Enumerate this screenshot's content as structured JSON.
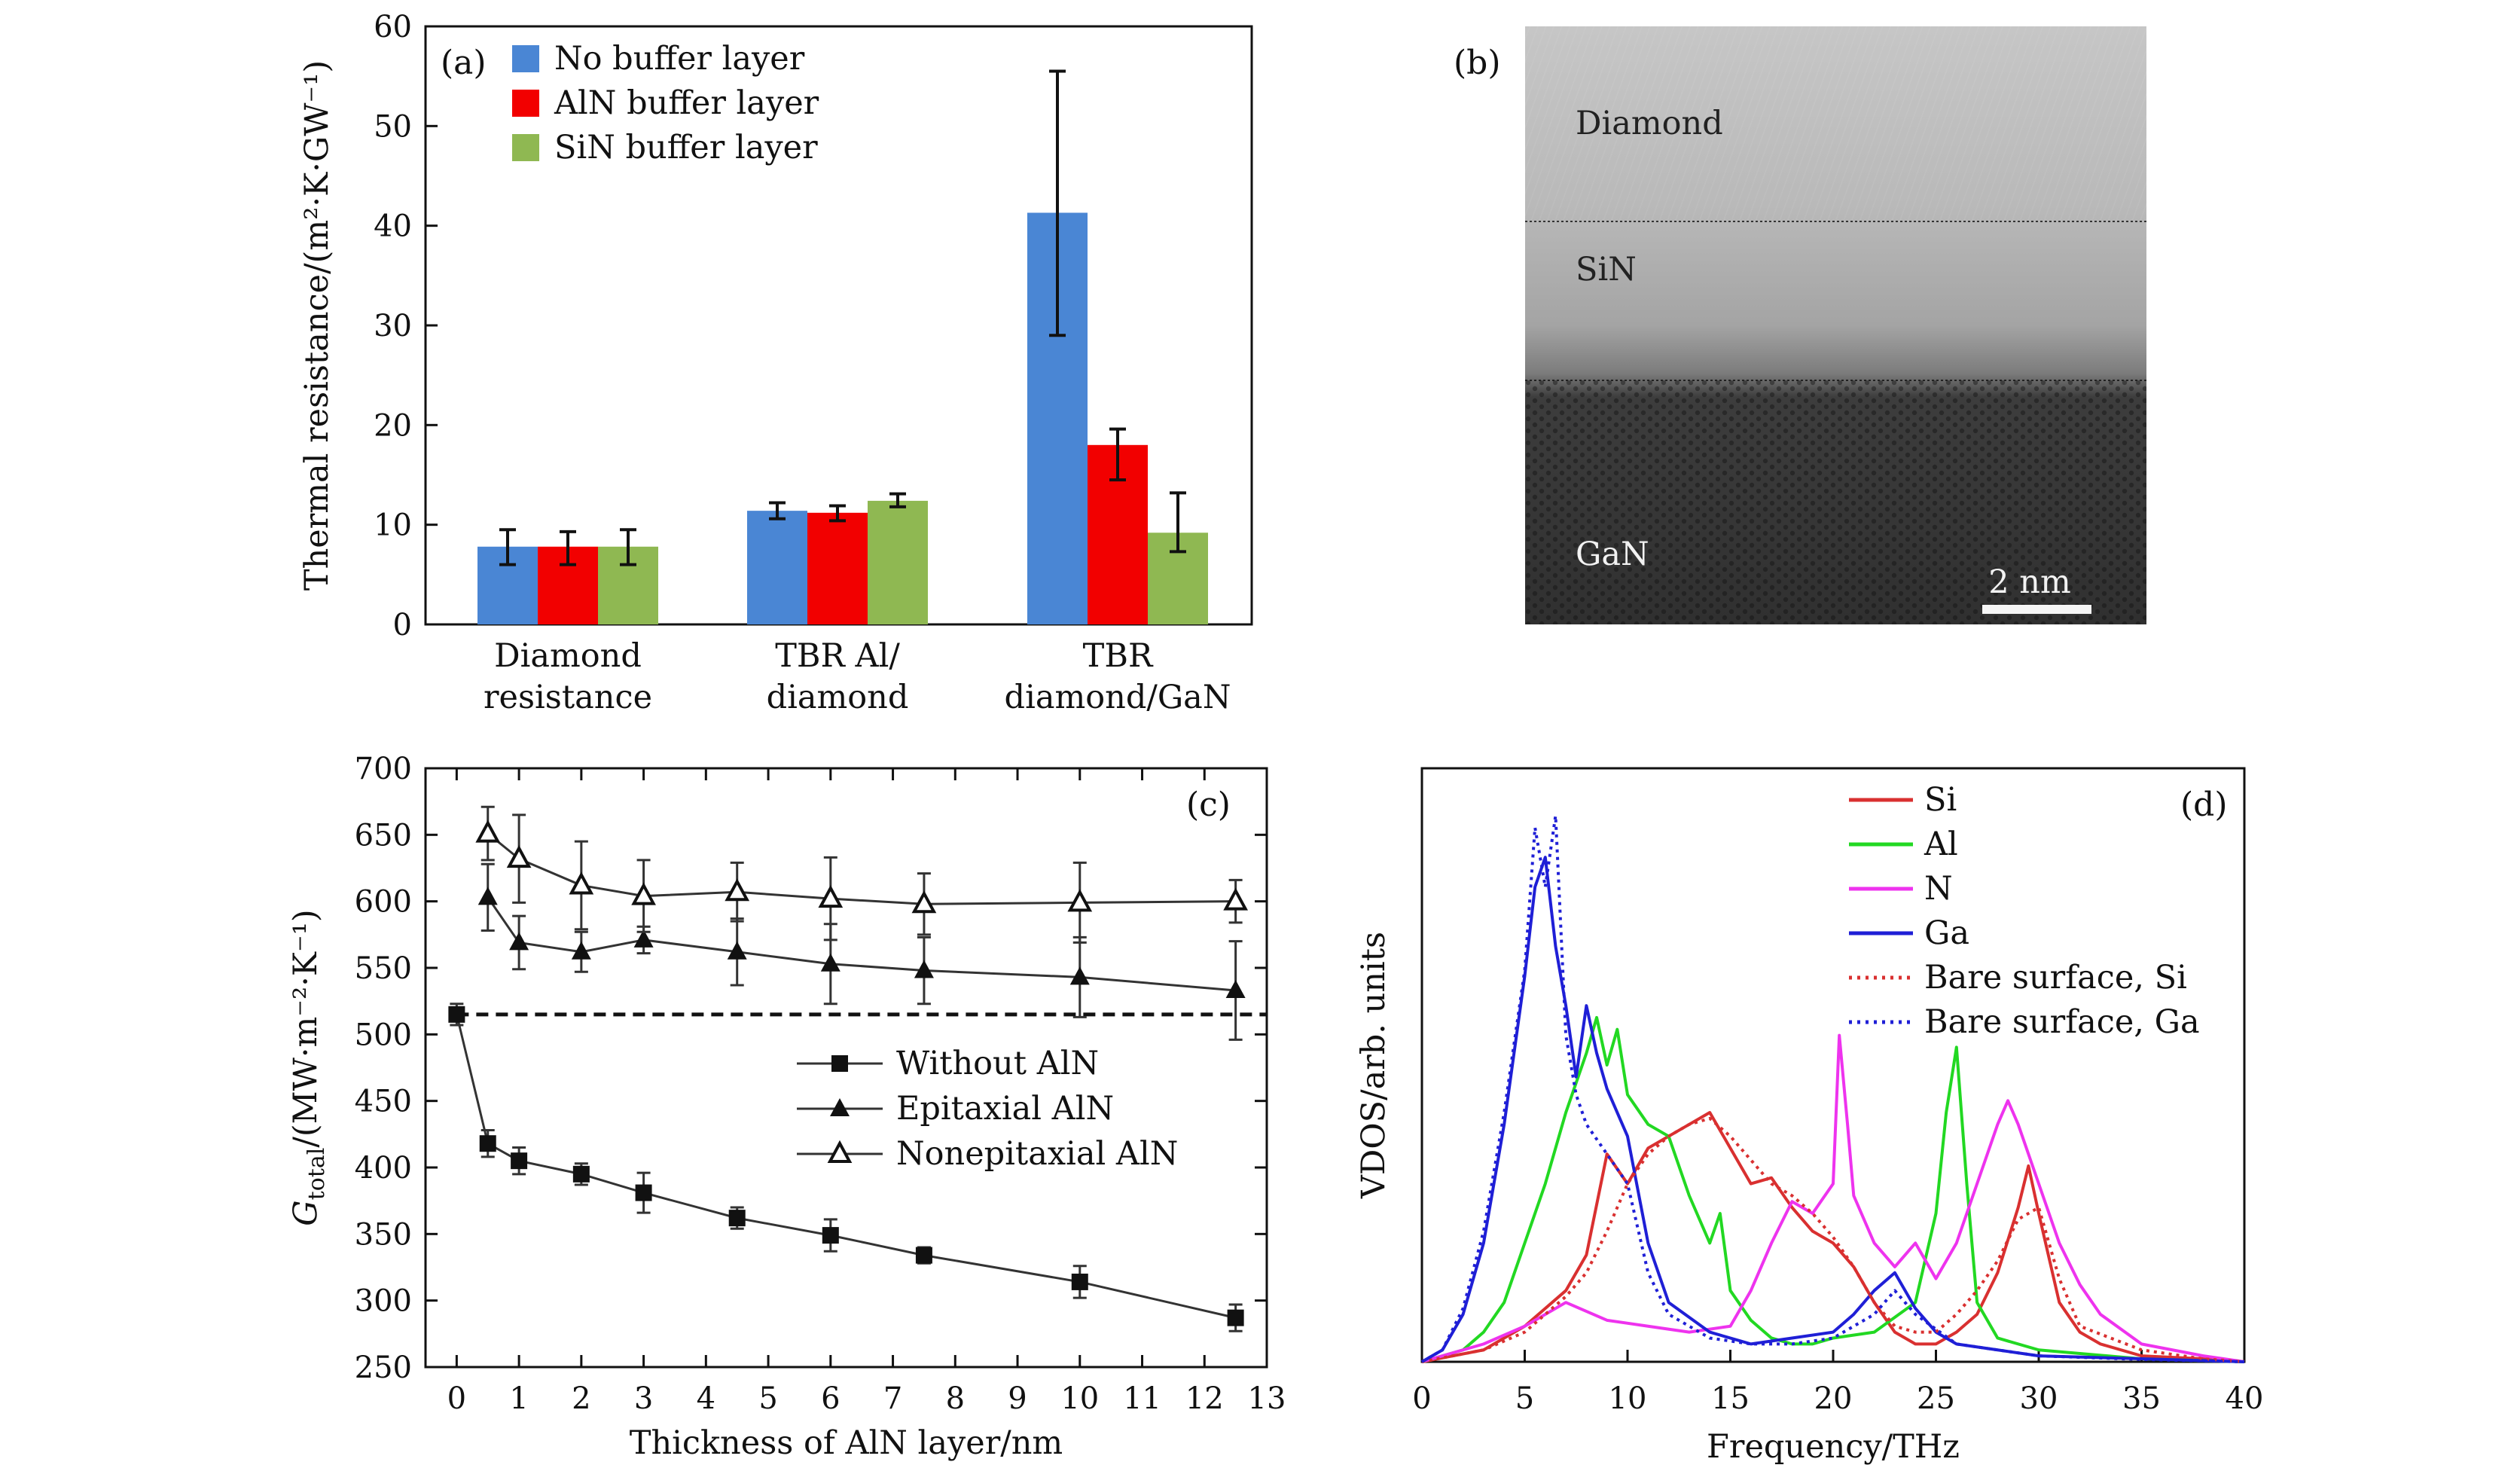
{
  "colors": {
    "no_buffer": "#4a86d4",
    "aln_buffer": "#f20000",
    "sin_buffer": "#8fb852",
    "si": "#d93030",
    "al": "#22d822",
    "n": "#ee33ee",
    "ga": "#1f1fd6"
  },
  "chart_data": [
    {
      "panel": "(a)",
      "type": "bar",
      "ylabel": "Thermal resistance/(m²·K·GW⁻¹)",
      "ylim": [
        0,
        60
      ],
      "yticks": [
        0,
        10,
        20,
        30,
        40,
        50,
        60
      ],
      "categories": [
        {
          "line1": "Diamond",
          "line2": "resistance"
        },
        {
          "line1": "TBR Al/",
          "line2": "diamond"
        },
        {
          "line1": "TBR",
          "line2": "diamond/GaN"
        }
      ],
      "legend_position": "top-left",
      "series": [
        {
          "name": "No buffer layer",
          "color": "#4a86d4",
          "values": [
            7.8,
            11.4,
            41.3
          ],
          "err_low": [
            6.0,
            10.6,
            29.0
          ],
          "err_high": [
            9.5,
            12.2,
            55.5
          ]
        },
        {
          "name": "AlN buffer layer",
          "color": "#f20000",
          "values": [
            7.8,
            11.2,
            18.0
          ],
          "err_low": [
            6.0,
            10.4,
            14.5
          ],
          "err_high": [
            9.3,
            11.9,
            19.6
          ]
        },
        {
          "name": "SiN buffer layer",
          "color": "#8fb852",
          "values": [
            7.8,
            12.4,
            9.2
          ],
          "err_low": [
            6.0,
            11.8,
            7.3
          ],
          "err_high": [
            9.5,
            13.1,
            13.2
          ]
        }
      ]
    },
    {
      "panel": "(b)",
      "type": "image",
      "labels": {
        "top": "Diamond",
        "middle": "SiN",
        "bottom": "GaN",
        "scale": "2 nm"
      }
    },
    {
      "panel": "(c)",
      "type": "line",
      "xlabel": "Thickness of AlN layer/nm",
      "ylabel_main": "G",
      "ylabel_sub": "total",
      "ylabel_rest": "/(MW·m⁻²·K⁻¹)",
      "xlim": [
        -0.5,
        13
      ],
      "ylim": [
        250,
        700
      ],
      "xticks": [
        0,
        1,
        2,
        3,
        4,
        5,
        6,
        7,
        8,
        9,
        10,
        11,
        12,
        13
      ],
      "yticks": [
        250,
        300,
        350,
        400,
        450,
        500,
        550,
        600,
        650,
        700
      ],
      "reference_line": 515,
      "legend_position": "center-right",
      "series": [
        {
          "name": "Without AlN",
          "marker": "square",
          "x": [
            0,
            0.5,
            1,
            2,
            3,
            4.5,
            6,
            7.5,
            10,
            12.5
          ],
          "y": [
            515,
            418,
            405,
            395,
            381,
            362,
            349,
            334,
            314,
            287
          ],
          "err": [
            8,
            10,
            10,
            8,
            15,
            8,
            12,
            6,
            12,
            10
          ]
        },
        {
          "name": "Epitaxial AlN",
          "marker": "triangle-filled",
          "x": [
            0.5,
            1,
            2,
            3,
            4.5,
            6,
            7.5,
            10,
            12.5
          ],
          "y": [
            603,
            569,
            562,
            571,
            562,
            553,
            548,
            543,
            533
          ],
          "err": [
            25,
            20,
            15,
            10,
            25,
            30,
            25,
            30,
            37
          ]
        },
        {
          "name": "Nonepitaxial AlN",
          "marker": "triangle-open",
          "x": [
            0.5,
            1,
            2,
            3,
            4.5,
            6,
            7.5,
            10,
            12.5
          ],
          "y": [
            651,
            632,
            612,
            604,
            607,
            602,
            598,
            599,
            600
          ],
          "err": [
            20,
            33,
            33,
            27,
            22,
            31,
            23,
            30,
            16
          ]
        }
      ]
    },
    {
      "panel": "(d)",
      "type": "line",
      "xlabel": "Frequency/THz",
      "ylabel": "VDOS/arb. units",
      "xlim": [
        0,
        40
      ],
      "ylim": [
        0,
        1
      ],
      "xticks": [
        0,
        5,
        10,
        15,
        20,
        25,
        30,
        35,
        40
      ],
      "legend_position": "top-right",
      "series": [
        {
          "name": "Si",
          "style": "solid",
          "color": "#d93030",
          "x": [
            0,
            3,
            5,
            6,
            7,
            8,
            9,
            10,
            11,
            12,
            13,
            14,
            15,
            16,
            17,
            18,
            19,
            20,
            21,
            22,
            23,
            24,
            25,
            26,
            27,
            28,
            29,
            29.5,
            30,
            31,
            32,
            33,
            35,
            38,
            40
          ],
          "y": [
            0,
            0.02,
            0.06,
            0.09,
            0.12,
            0.18,
            0.35,
            0.3,
            0.36,
            0.38,
            0.4,
            0.42,
            0.36,
            0.3,
            0.31,
            0.26,
            0.22,
            0.2,
            0.16,
            0.1,
            0.05,
            0.03,
            0.03,
            0.05,
            0.08,
            0.15,
            0.26,
            0.33,
            0.25,
            0.1,
            0.05,
            0.03,
            0.01,
            0.005,
            0
          ]
        },
        {
          "name": "Al",
          "style": "solid",
          "color": "#22d822",
          "x": [
            0,
            2,
            3,
            4,
            5,
            6,
            7,
            8,
            8.5,
            9,
            9.5,
            10,
            11,
            12,
            13,
            14,
            14.5,
            15,
            16,
            17,
            18,
            19,
            20,
            22,
            24,
            25,
            25.5,
            26,
            26.5,
            27,
            28,
            30,
            35,
            40
          ],
          "y": [
            0,
            0.02,
            0.05,
            0.1,
            0.2,
            0.3,
            0.42,
            0.52,
            0.58,
            0.5,
            0.56,
            0.45,
            0.4,
            0.38,
            0.28,
            0.2,
            0.25,
            0.12,
            0.07,
            0.04,
            0.03,
            0.03,
            0.04,
            0.05,
            0.1,
            0.25,
            0.42,
            0.53,
            0.3,
            0.1,
            0.04,
            0.02,
            0.005,
            0
          ]
        },
        {
          "name": "N",
          "style": "solid",
          "color": "#ee33ee",
          "x": [
            0,
            3,
            5,
            6,
            7,
            9,
            11,
            13,
            15,
            16,
            17,
            18,
            19,
            20,
            20.3,
            20.7,
            21,
            22,
            23,
            24,
            25,
            26,
            27,
            28,
            28.5,
            29,
            30,
            31,
            32,
            33,
            35,
            38,
            40
          ],
          "y": [
            0,
            0.03,
            0.06,
            0.08,
            0.1,
            0.07,
            0.06,
            0.05,
            0.06,
            0.12,
            0.2,
            0.27,
            0.25,
            0.3,
            0.55,
            0.4,
            0.28,
            0.2,
            0.16,
            0.2,
            0.14,
            0.2,
            0.3,
            0.4,
            0.44,
            0.4,
            0.3,
            0.2,
            0.13,
            0.08,
            0.03,
            0.01,
            0
          ]
        },
        {
          "name": "Ga",
          "style": "solid",
          "color": "#1f1fd6",
          "x": [
            0,
            1,
            2,
            3,
            4,
            5,
            5.5,
            6,
            6.5,
            7,
            7.5,
            8,
            8.5,
            9,
            10,
            11,
            12,
            14,
            16,
            18,
            20,
            21,
            22,
            23,
            24,
            25,
            26,
            28,
            30,
            35,
            40
          ],
          "y": [
            0,
            0.02,
            0.08,
            0.2,
            0.4,
            0.65,
            0.8,
            0.85,
            0.7,
            0.6,
            0.48,
            0.6,
            0.52,
            0.46,
            0.38,
            0.2,
            0.1,
            0.05,
            0.03,
            0.04,
            0.05,
            0.08,
            0.12,
            0.15,
            0.09,
            0.05,
            0.03,
            0.02,
            0.01,
            0.005,
            0
          ]
        },
        {
          "name": "Bare surface, Si",
          "style": "dotted",
          "color": "#d93030",
          "x": [
            0,
            3,
            5,
            6,
            7,
            8,
            9,
            10,
            11,
            12,
            13,
            14,
            15,
            16,
            17,
            18,
            19,
            20,
            21,
            22,
            23,
            24,
            25,
            26,
            27,
            28,
            29,
            30,
            31,
            32,
            35,
            38,
            40
          ],
          "y": [
            0,
            0.02,
            0.05,
            0.08,
            0.11,
            0.15,
            0.22,
            0.3,
            0.35,
            0.38,
            0.4,
            0.41,
            0.38,
            0.34,
            0.3,
            0.28,
            0.25,
            0.21,
            0.16,
            0.1,
            0.06,
            0.05,
            0.05,
            0.08,
            0.12,
            0.17,
            0.24,
            0.26,
            0.14,
            0.06,
            0.02,
            0.005,
            0
          ]
        },
        {
          "name": "Bare surface, Ga",
          "style": "dotted",
          "color": "#1f1fd6",
          "x": [
            0,
            1,
            2,
            3,
            4,
            5,
            5.5,
            6,
            6.5,
            7,
            7.5,
            8,
            9,
            10,
            11,
            12,
            14,
            16,
            18,
            20,
            22,
            23,
            24,
            26,
            28,
            30,
            35,
            40
          ],
          "y": [
            0,
            0.02,
            0.09,
            0.22,
            0.42,
            0.66,
            0.9,
            0.8,
            0.92,
            0.55,
            0.45,
            0.4,
            0.35,
            0.3,
            0.15,
            0.08,
            0.04,
            0.03,
            0.03,
            0.04,
            0.08,
            0.12,
            0.08,
            0.03,
            0.02,
            0.01,
            0.004,
            0
          ]
        }
      ]
    }
  ]
}
